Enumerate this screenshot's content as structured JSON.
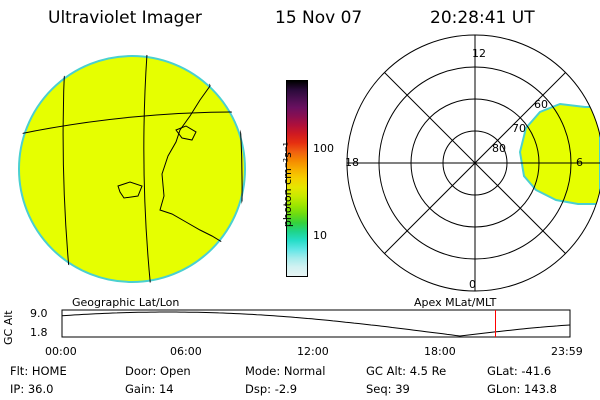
{
  "header": {
    "instrument": "Ultraviolet Imager",
    "date": "15 Nov 07",
    "time": "20:28:41 UT"
  },
  "colorbar": {
    "unit": "photon cm⁻²s⁻¹",
    "ticks": [
      "100",
      "10"
    ],
    "colors": [
      "#000000",
      "#2a0a3a",
      "#4a0f50",
      "#6a1060",
      "#8a0f50",
      "#b0103a",
      "#d01a20",
      "#e63010",
      "#f06010",
      "#f58a00",
      "#f7b000",
      "#f5d000",
      "#e6e600",
      "#c8ea00",
      "#9ee600",
      "#6edc10",
      "#35d23c",
      "#1ed48c",
      "#26ddc8",
      "#60e6e6",
      "#a5ecec",
      "#d2f2f2",
      "#e8f4f4"
    ]
  },
  "geo_map": {
    "label": "Geographic Lat/Lon",
    "fill_color": "#e6ff00",
    "edge_color": "#4ad0d0"
  },
  "polar_map": {
    "label": "Apex MLat/MLT",
    "mlt_labels": {
      "top": "12",
      "left": "18",
      "right": "6",
      "bottom": "0"
    },
    "lat_labels": [
      "60",
      "70",
      "80"
    ]
  },
  "orbit_plot": {
    "ylabel": "GC Alt",
    "yticks": [
      "9.0",
      "1.8"
    ],
    "xticks": [
      "00:00",
      "06:00",
      "12:00",
      "18:00",
      "23:59"
    ],
    "current_time_hours": 20.48,
    "marker_color": "#ff0000"
  },
  "status": {
    "row1": [
      {
        "label": "Flt:",
        "value": "HOME"
      },
      {
        "label": "Door:",
        "value": "Open"
      },
      {
        "label": "Mode:",
        "value": "Normal"
      },
      {
        "label": "GC Alt:",
        "value": "4.5 Re"
      },
      {
        "label": "GLat:",
        "value": "-41.6"
      }
    ],
    "row2": [
      {
        "label": "IP:",
        "value": "36.0"
      },
      {
        "label": "Gain:",
        "value": "14"
      },
      {
        "label": "Dsp:",
        "value": "-2.9"
      },
      {
        "label": "Seq:",
        "value": "39"
      },
      {
        "label": "GLon:",
        "value": "143.8"
      }
    ]
  }
}
